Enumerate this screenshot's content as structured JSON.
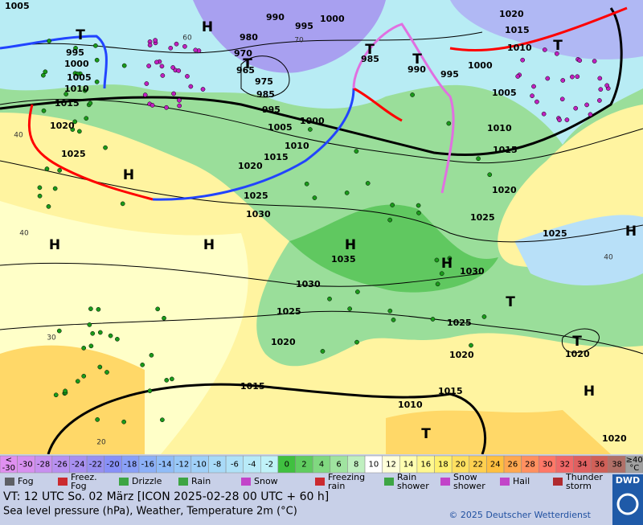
{
  "map": {
    "isobar_labels": [
      "1005",
      "990",
      "1000",
      "995",
      "980",
      "985",
      "970",
      "975",
      "985",
      "995",
      "965",
      "990",
      "1000",
      "995",
      "1005",
      "1010",
      "1015",
      "1020",
      "995",
      "1000",
      "1005",
      "1010",
      "1015",
      "1020",
      "1025",
      "1000",
      "1005",
      "1010",
      "1015",
      "1020",
      "1025",
      "1030",
      "1010",
      "1015",
      "1020",
      "1025",
      "1025",
      "1035",
      "1030",
      "1030",
      "1025",
      "1020",
      "1025",
      "1020",
      "1020",
      "1015",
      "1015",
      "1010",
      "1020"
    ],
    "pressure_centers": [
      "H",
      "H",
      "H",
      "H",
      "H",
      "H",
      "H",
      "H",
      "T",
      "T",
      "T",
      "T",
      "T",
      "T",
      "T",
      "T"
    ],
    "grid_labels": [
      "40",
      "40",
      "30",
      "20",
      "60",
      "70",
      "40"
    ]
  },
  "temperature_scale": {
    "lower_bound": {
      "symbol": "<",
      "value": "-30",
      "color": "#e090f0"
    },
    "items": [
      {
        "label": "-30",
        "color": "#d890f0"
      },
      {
        "label": "-28",
        "color": "#c890f0"
      },
      {
        "label": "-26",
        "color": "#b890f0"
      },
      {
        "label": "-24",
        "color": "#a890f0"
      },
      {
        "label": "-22",
        "color": "#9890f0"
      },
      {
        "label": "-20",
        "color": "#8890f8"
      },
      {
        "label": "-18",
        "color": "#8aa0f8"
      },
      {
        "label": "-16",
        "color": "#8cb0f8"
      },
      {
        "label": "-14",
        "color": "#90bcf8"
      },
      {
        "label": "-12",
        "color": "#98c8f8"
      },
      {
        "label": "-10",
        "color": "#a0d0f8"
      },
      {
        "label": "-8",
        "color": "#a8daf8"
      },
      {
        "label": "-6",
        "color": "#b0e2f8"
      },
      {
        "label": "-4",
        "color": "#b8eaf8"
      },
      {
        "label": "-2",
        "color": "#c0f2f8"
      },
      {
        "label": "0",
        "color": "#40c040"
      },
      {
        "label": "2",
        "color": "#60cc60"
      },
      {
        "label": "4",
        "color": "#80d880"
      },
      {
        "label": "6",
        "color": "#a0e4a0"
      },
      {
        "label": "8",
        "color": "#c0f0c0"
      },
      {
        "label": "10",
        "color": "#ffffff"
      },
      {
        "label": "12",
        "color": "#ffffd8"
      },
      {
        "label": "14",
        "color": "#ffffb0"
      },
      {
        "label": "16",
        "color": "#fff890"
      },
      {
        "label": "18",
        "color": "#fff070"
      },
      {
        "label": "20",
        "color": "#ffe060"
      },
      {
        "label": "22",
        "color": "#ffd050"
      },
      {
        "label": "24",
        "color": "#ffc040"
      },
      {
        "label": "26",
        "color": "#ffa850"
      },
      {
        "label": "28",
        "color": "#ff9060"
      },
      {
        "label": "30",
        "color": "#ff7868"
      },
      {
        "label": "32",
        "color": "#f06868"
      },
      {
        "label": "34",
        "color": "#e06060"
      },
      {
        "label": "36",
        "color": "#d06058"
      },
      {
        "label": "38",
        "color": "#b07068"
      }
    ],
    "upper_bound": {
      "symbol": "≥40",
      "unit": "°C",
      "color": "#a0a0a0"
    }
  },
  "weather_legend": [
    {
      "lines": [
        "Fog"
      ]
    },
    {
      "lines": [
        "Freez.",
        "Fog"
      ]
    },
    {
      "lines": [
        "Drizzle"
      ]
    },
    {
      "lines": [
        "Rain"
      ]
    },
    {
      "lines": [
        "Snow"
      ]
    },
    {
      "lines": [
        "Freezing",
        "rain"
      ]
    },
    {
      "lines": [
        "Rain",
        "shower"
      ]
    },
    {
      "lines": [
        "Snow",
        "shower"
      ]
    },
    {
      "lines": [
        "Hail"
      ]
    },
    {
      "lines": [
        "Thunder",
        "storm"
      ]
    }
  ],
  "footer": {
    "valid_time": "VT: 12 UTC So.  02 März [ICON 2025-02-28  00 UTC + 60 h]",
    "description": "Sea level pressure (hPa), Weather, Temperature 2m (°C)",
    "copyright": "© 2025 Deutscher Wetterdienst",
    "logo": "DWD"
  }
}
